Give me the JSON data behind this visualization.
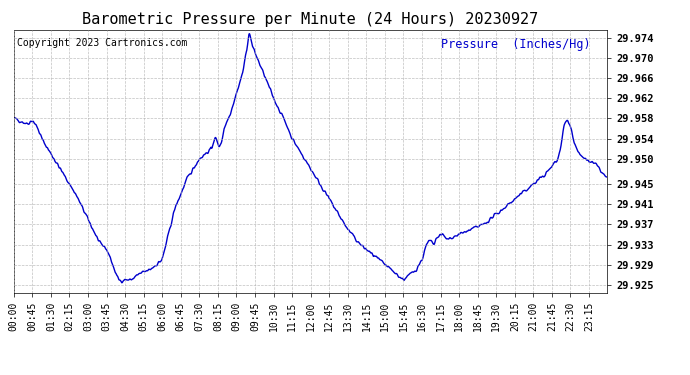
{
  "title": "Barometric Pressure per Minute (24 Hours) 20230927",
  "copyright": "Copyright 2023 Cartronics.com",
  "ylabel": "Pressure  (Inches/Hg)",
  "line_color": "#0000cc",
  "background_color": "#ffffff",
  "grid_color": "#b0b0b0",
  "ylim": [
    29.9235,
    29.9755
  ],
  "yticks": [
    29.925,
    29.929,
    29.933,
    29.937,
    29.941,
    29.945,
    29.95,
    29.954,
    29.958,
    29.962,
    29.966,
    29.97,
    29.974
  ],
  "xtick_labels": [
    "00:00",
    "00:45",
    "01:30",
    "02:15",
    "03:00",
    "03:45",
    "04:30",
    "05:15",
    "06:00",
    "06:45",
    "07:30",
    "08:15",
    "09:00",
    "09:45",
    "10:30",
    "11:15",
    "12:00",
    "12:45",
    "13:30",
    "14:15",
    "15:00",
    "15:45",
    "16:30",
    "17:15",
    "18:00",
    "18:45",
    "19:30",
    "20:15",
    "21:00",
    "21:45",
    "22:30",
    "23:15"
  ],
  "title_fontsize": 11,
  "tick_fontsize": 7,
  "ylabel_fontsize": 8.5,
  "copyright_fontsize": 7,
  "line_width": 1.0
}
